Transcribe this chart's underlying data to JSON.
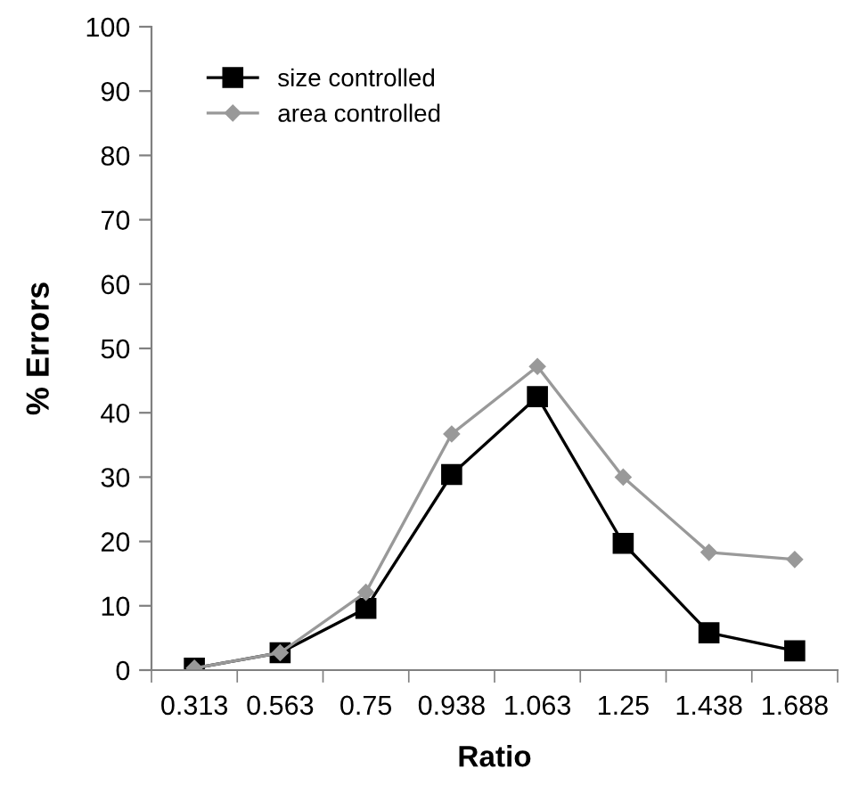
{
  "chart_data": {
    "type": "line",
    "xlabel": "Ratio",
    "ylabel": "% Errors",
    "categories": [
      "0.313",
      "0.563",
      "0.75",
      "0.938",
      "1.063",
      "1.25",
      "1.438",
      "1.688"
    ],
    "series": [
      {
        "name": "size controlled",
        "color": "#000000",
        "marker": "square",
        "values": [
          0.3,
          2.7,
          9.6,
          30.4,
          42.5,
          19.7,
          5.8,
          3.0
        ]
      },
      {
        "name": "area controlled",
        "color": "#999999",
        "marker": "diamond",
        "values": [
          0.3,
          2.7,
          12.1,
          36.7,
          47.2,
          30.0,
          18.3,
          17.2
        ]
      }
    ],
    "ylim": [
      0,
      100
    ],
    "yticks": [
      0,
      10,
      20,
      30,
      40,
      50,
      60,
      70,
      80,
      90,
      100
    ],
    "grid": false,
    "legend": "top left"
  }
}
